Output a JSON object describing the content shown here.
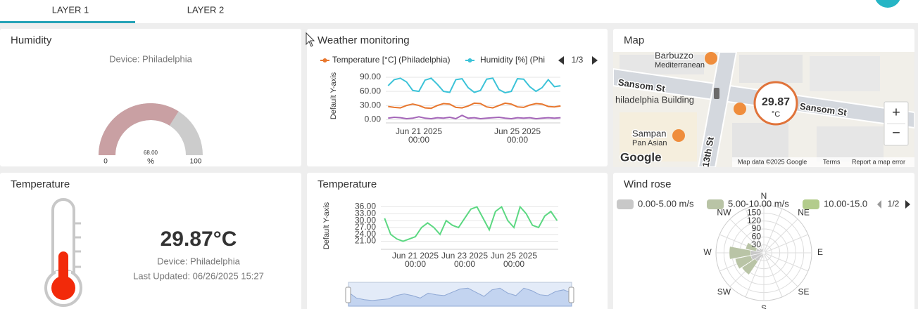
{
  "tabs": [
    "LAYER 1",
    "LAYER 2"
  ],
  "humidity": {
    "title": "Humidity",
    "device": "Device: Philadelphia",
    "chart_data": {
      "type": "gauge",
      "value": 68,
      "value_label": "68.00",
      "unit": "%",
      "ylim": [
        0,
        100
      ],
      "color": "#c9a0a3"
    }
  },
  "weather": {
    "title": "Weather monitoring",
    "chart_data": {
      "type": "line",
      "y_label": "Default Y-axis",
      "legend_page": "1/3",
      "grid": true,
      "ylim": [
        -7,
        108
      ],
      "yticks": [
        {
          "value": 90,
          "label": "90.00"
        },
        {
          "value": 60,
          "label": "60.00"
        },
        {
          "value": 30,
          "label": "30.00"
        },
        {
          "value": 0,
          "label": "0.00"
        }
      ],
      "categories": [
        null,
        null,
        null,
        null,
        null,
        [
          "Jun 21 2025",
          "00:00"
        ],
        null,
        null,
        null,
        null,
        null,
        null,
        null,
        null,
        null,
        null,
        null,
        null,
        null,
        null,
        null,
        [
          "Jun 25 2025",
          "00:00"
        ],
        null,
        null,
        null,
        null,
        null,
        null,
        null
      ],
      "series": [
        {
          "name": "Temperature [°C] (Philadelphia)",
          "color": "#e8772e",
          "values": [
            28,
            26,
            25,
            30,
            33,
            30,
            25,
            24,
            30,
            34,
            33,
            26,
            25,
            29,
            35,
            34,
            27,
            25,
            30,
            35,
            33,
            27,
            26,
            31,
            34,
            33,
            28,
            27,
            29
          ]
        },
        {
          "name": "Humidity [%] (Phi",
          "color": "#3cc3d8",
          "values": [
            72,
            85,
            88,
            80,
            62,
            60,
            84,
            88,
            75,
            60,
            58,
            85,
            87,
            68,
            58,
            62,
            86,
            88,
            64,
            57,
            60,
            87,
            86,
            70,
            60,
            68,
            85,
            70,
            72
          ]
        },
        {
          "color": "#a466b8",
          "values": [
            3,
            5,
            4,
            2,
            3,
            6,
            3,
            2,
            4,
            3,
            5,
            2,
            9,
            3,
            4,
            2,
            3,
            4,
            5,
            3,
            2,
            4,
            3,
            4,
            2,
            3,
            4,
            3,
            4
          ]
        }
      ]
    }
  },
  "map": {
    "title": "Map",
    "places": [
      {
        "name": "Barbuzzo",
        "sub": "Mediterranean"
      },
      {
        "name": "Sampan",
        "sub": "Pan Asian"
      }
    ],
    "streets": [
      "Sansom St",
      "Sansom St",
      "13th St"
    ],
    "building": "hiladelphia Building",
    "marker": {
      "value": 29.87,
      "unit": "°C"
    },
    "zoom": [
      "+",
      "−"
    ],
    "logo": "Google",
    "footer": [
      "Map data ©2025 Google",
      "Terms",
      "Report a map error"
    ]
  },
  "temperature": {
    "title": "Temperature",
    "value": 29.87,
    "value_label": "29.87°C",
    "device": "Device: Philadelphia",
    "updated": "Last Updated: 06/26/2025 15:27"
  },
  "temp_chart": {
    "title": "Temperature",
    "chart_data": {
      "type": "line",
      "y_label": "Default Y-axis",
      "grid": true,
      "ylim": [
        17.5,
        38
      ],
      "yticks": [
        {
          "value": 36,
          "label": "36.00"
        },
        {
          "value": 33,
          "label": "33.00"
        },
        {
          "value": 30,
          "label": "30.00"
        },
        {
          "value": 27,
          "label": "27.00"
        },
        {
          "value": 24,
          "label": "24.00"
        },
        {
          "value": 21,
          "label": "21.00"
        }
      ],
      "categories": [
        null,
        null,
        null,
        null,
        null,
        [
          "Jun 21 2025",
          "00:00"
        ],
        null,
        null,
        null,
        null,
        null,
        null,
        null,
        [
          "Jun 23 2025",
          "00:00"
        ],
        null,
        null,
        null,
        null,
        null,
        null,
        null,
        [
          "Jun 25 2025",
          "00:00"
        ],
        null,
        null,
        null,
        null,
        null,
        null,
        null
      ],
      "series": [
        {
          "color": "#5cd882",
          "values": [
            31,
            24,
            22,
            21,
            22,
            23,
            27,
            29,
            27,
            24,
            30,
            28,
            27,
            31,
            35,
            36,
            31,
            26,
            34,
            36,
            30,
            27,
            36,
            33,
            28,
            27,
            32,
            34,
            30
          ]
        }
      ]
    }
  },
  "wind": {
    "title": "Wind rose",
    "chart_data": {
      "type": "windrose",
      "legend_page": "1/2",
      "rlim": [
        0,
        180
      ],
      "rticks": [
        30,
        60,
        90,
        120,
        150
      ],
      "categories": [
        "N",
        null,
        "NE",
        null,
        "E",
        null,
        "SE",
        null,
        "S",
        null,
        "SW",
        null,
        "W",
        null,
        "NW",
        null
      ],
      "series": [
        {
          "name": "0.00-5.00 m/s",
          "color": "#c8c8c8",
          "values": [
            10,
            5,
            5,
            5,
            5,
            5,
            5,
            5,
            10,
            20,
            40,
            50,
            50,
            30,
            20,
            15
          ]
        },
        {
          "name": "5.00-10.00 m/s",
          "color": "#b9c4a6",
          "values": [
            0,
            0,
            0,
            0,
            0,
            0,
            0,
            0,
            0,
            0,
            60,
            60,
            80,
            40,
            0,
            0
          ]
        },
        {
          "name": "10.00-15.0",
          "color": "#b3cc8c",
          "values": [
            0,
            0,
            0,
            0,
            0,
            0,
            0,
            0,
            0,
            0,
            0,
            0,
            0,
            0,
            0,
            0
          ]
        }
      ]
    }
  }
}
